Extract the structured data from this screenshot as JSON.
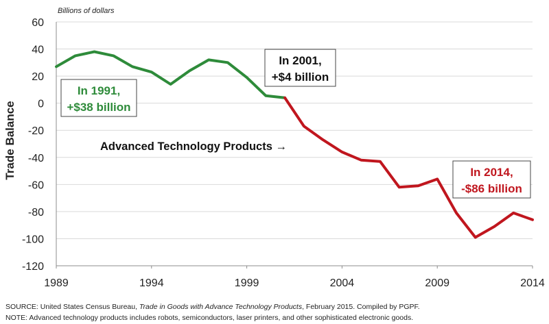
{
  "chart_data": {
    "type": "line",
    "title": "",
    "units_label": "Billions of dollars",
    "xlabel": "",
    "ylabel": "Trade Balance",
    "xlim": [
      1989,
      2014
    ],
    "ylim": [
      -120,
      60
    ],
    "x_ticks": [
      1989,
      1994,
      1999,
      2004,
      2009,
      2014
    ],
    "y_ticks": [
      60,
      40,
      20,
      0,
      -20,
      -40,
      -60,
      -80,
      -100,
      -120
    ],
    "grid": "horizontal",
    "x": [
      1989,
      1990,
      1991,
      1992,
      1993,
      1994,
      1995,
      1996,
      1997,
      1998,
      1999,
      2000,
      2001,
      2002,
      2003,
      2004,
      2005,
      2006,
      2007,
      2008,
      2009,
      2010,
      2011,
      2012,
      2013,
      2014
    ],
    "series": [
      {
        "name": "Advanced Technology Products",
        "values": [
          27,
          35,
          38,
          35,
          27,
          23,
          14,
          24,
          32,
          30,
          19,
          5.5,
          4,
          -17,
          -27,
          -36,
          -42,
          -43,
          -62,
          -61,
          -56,
          -81,
          -99,
          -91,
          -81,
          -86
        ],
        "surplus_color": "#2e8b3a",
        "deficit_color": "#c0161e"
      }
    ],
    "annotations": [
      {
        "id": "1991",
        "line1": "In 1991,",
        "line2": "+$38 billion",
        "color": "#2e8b3a"
      },
      {
        "id": "2001",
        "line1": "In 2001,",
        "line2": "+$4 billion",
        "color": "#111111"
      },
      {
        "id": "2014",
        "line1": "In 2014,",
        "line2": "-$86 billion",
        "color": "#c0161e"
      }
    ],
    "series_label": "Advanced Technology Products →"
  },
  "footer": {
    "source_prefix": "SOURCE:  United States Census Bureau, ",
    "source_italic": "Trade in Goods with Advance Technology Products",
    "source_suffix": ", February 2015. Compiled by PGPF.",
    "note": "NOTE:  Advanced technology products includes robots, semiconductors, laser printers, and other sophisticated electronic goods."
  }
}
